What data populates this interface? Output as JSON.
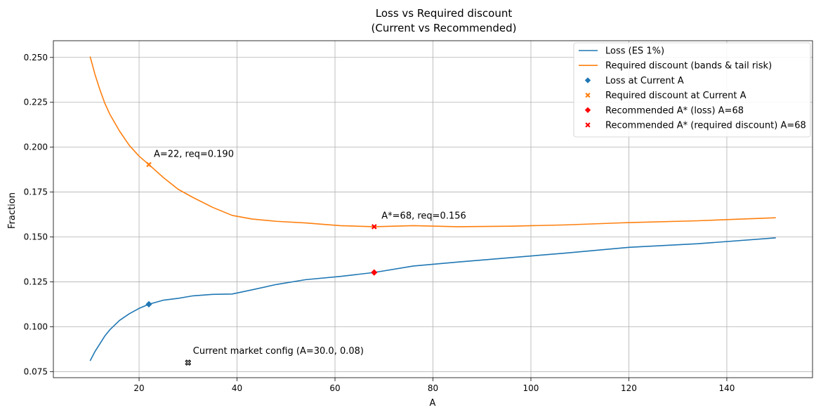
{
  "chart_data": {
    "type": "line",
    "title_line1": "Loss vs Required discount",
    "title_line2": "(Current vs Recommended)",
    "xlabel": "A",
    "ylabel": "Fraction",
    "xlim": [
      2.5,
      157.5
    ],
    "ylim": [
      0.0716,
      0.2593
    ],
    "xticks": [
      20,
      40,
      60,
      80,
      100,
      120,
      140
    ],
    "yticks": [
      0.075,
      0.1,
      0.125,
      0.15,
      0.175,
      0.2,
      0.225,
      0.25
    ],
    "ytick_labels": [
      "0.075",
      "0.100",
      "0.125",
      "0.150",
      "0.175",
      "0.200",
      "0.225",
      "0.250"
    ],
    "grid": true,
    "legend_position": "top-right",
    "series": [
      {
        "name": "Loss (ES 1%)",
        "color": "#1f77b4",
        "x": [
          10,
          11,
          12,
          13,
          14,
          16,
          18,
          20,
          22,
          25,
          28,
          31,
          35,
          39,
          43,
          48,
          54,
          61,
          68,
          76,
          85,
          96,
          107,
          120,
          134,
          150
        ],
        "y": [
          0.081,
          0.0862,
          0.0905,
          0.0948,
          0.0982,
          0.1035,
          0.1072,
          0.1102,
          0.1125,
          0.1148,
          0.1158,
          0.1172,
          0.118,
          0.1182,
          0.1205,
          0.1235,
          0.1262,
          0.128,
          0.1302,
          0.1338,
          0.136,
          0.1385,
          0.141,
          0.1442,
          0.1462,
          0.1495
        ]
      },
      {
        "name": "Required discount (bands & tail risk)",
        "color": "#ff7f0e",
        "x": [
          10,
          11,
          12,
          13,
          14,
          16,
          18,
          20,
          22,
          25,
          28,
          31,
          35,
          39,
          43,
          48,
          54,
          61,
          68,
          76,
          85,
          96,
          107,
          120,
          134,
          150
        ],
        "y": [
          0.2505,
          0.2405,
          0.232,
          0.2245,
          0.2185,
          0.209,
          0.201,
          0.195,
          0.1903,
          0.183,
          0.1765,
          0.172,
          0.1665,
          0.162,
          0.16,
          0.1587,
          0.1578,
          0.1563,
          0.1557,
          0.1563,
          0.1557,
          0.156,
          0.1567,
          0.158,
          0.159,
          0.1607
        ]
      }
    ],
    "markers": [
      {
        "name": "Loss at Current A",
        "x": 22,
        "y": 0.1125,
        "shape": "diamond",
        "color": "#1f77b4"
      },
      {
        "name": "Required discount at Current A",
        "x": 22,
        "y": 0.1903,
        "shape": "x",
        "color": "#ff7f0e"
      },
      {
        "name": "Recommended A* (loss) A=68",
        "x": 68,
        "y": 0.1302,
        "shape": "diamond",
        "color": "#ff0000"
      },
      {
        "name": "Recommended A* (required discount) A=68",
        "x": 68,
        "y": 0.1557,
        "shape": "x",
        "color": "#ff0000"
      }
    ],
    "market_config_marker": {
      "x": 30.0,
      "y": 0.08,
      "color": "#000000"
    },
    "annotations": [
      {
        "text": "A=22, req=0.190",
        "x": 23,
        "y": 0.1945
      },
      {
        "text": "A*=68, req=0.156",
        "x": 69.5,
        "y": 0.1601
      },
      {
        "text": "Current market config (A=30.0, 0.08)",
        "x": 31,
        "y": 0.0848
      }
    ]
  }
}
